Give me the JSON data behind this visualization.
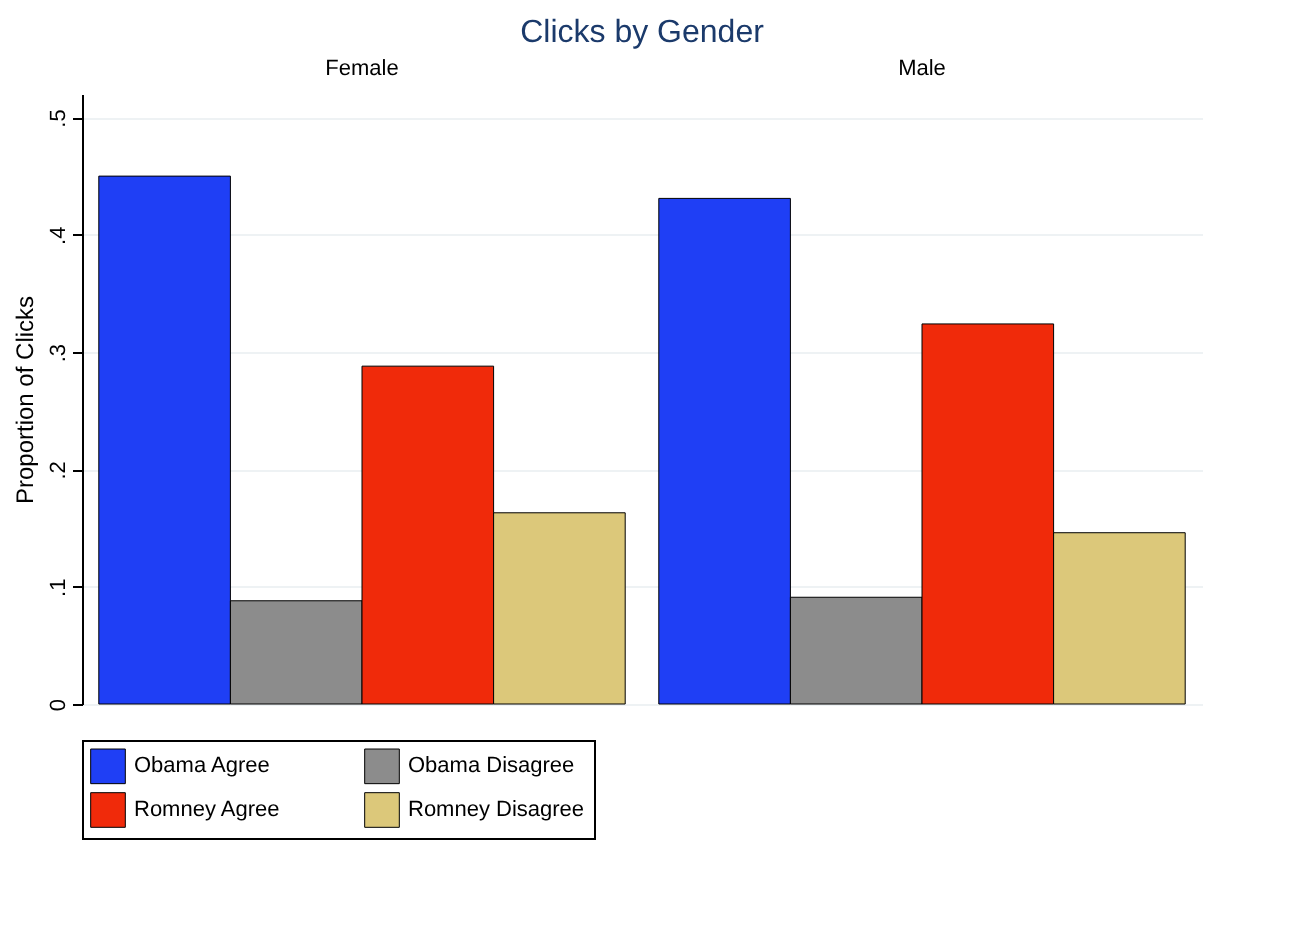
{
  "chart_data": {
    "type": "bar",
    "title": "Clicks by Gender",
    "ylabel": "Proportion of Clicks",
    "categories": [
      "Female",
      "Male"
    ],
    "ylim": [
      0,
      0.52
    ],
    "yticks": [
      0,
      {
        "value": 0.1,
        "label": ".1"
      },
      {
        "value": 0.2,
        "label": ".2"
      },
      {
        "value": 0.3,
        "label": ".3"
      },
      {
        "value": 0.4,
        "label": ".4"
      },
      {
        "value": 0.5,
        "label": ".5"
      }
    ],
    "grid": "y",
    "legend": "bottom",
    "series": [
      {
        "name": "Obama Agree",
        "color": "#1f3ff5",
        "values": [
          0.45,
          0.431
        ]
      },
      {
        "name": "Obama Disagree",
        "color": "#8c8c8c",
        "values": [
          0.088,
          0.091
        ]
      },
      {
        "name": "Romney Agree",
        "color": "#f02a0a",
        "values": [
          0.288,
          0.324
        ]
      },
      {
        "name": "Romney Disagree",
        "color": "#dcc87a",
        "values": [
          0.163,
          0.146
        ]
      }
    ]
  }
}
